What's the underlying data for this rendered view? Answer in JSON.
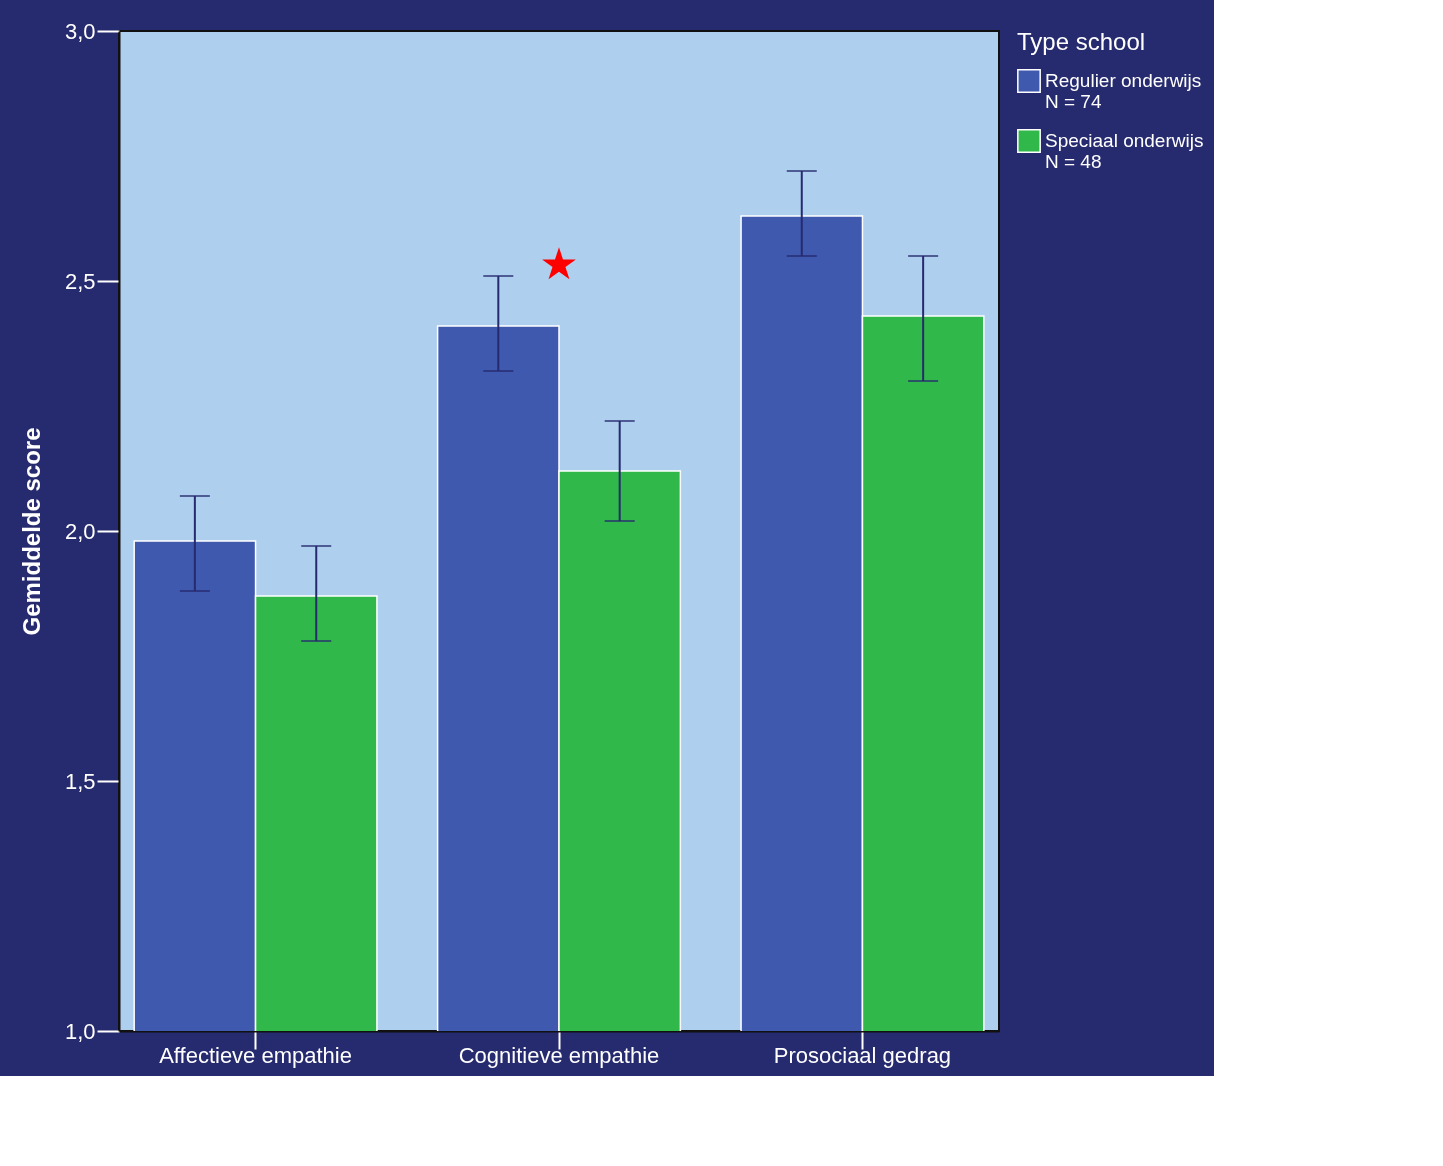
{
  "chart_data": {
    "type": "bar",
    "ylabel": "Gemiddelde score",
    "legend_title": "Type school",
    "legend": "top right",
    "grid": false,
    "categories": [
      "Affectieve empathie",
      "Cognitieve empathie",
      "Prosociaal gedrag"
    ],
    "ylim": [
      1.0,
      3.0
    ],
    "yticks": [
      {
        "value": 1.0,
        "label": "1,0"
      },
      {
        "value": 1.5,
        "label": "1,5"
      },
      {
        "value": 2.0,
        "label": "2,0"
      },
      {
        "value": 2.5,
        "label": "2,5"
      },
      {
        "value": 3.0,
        "label": "3,0"
      }
    ],
    "series": [
      {
        "name": "Regulier onderwijs\nN = 74",
        "color": "#3f59ae",
        "values": [
          1.98,
          2.41,
          2.63
        ],
        "errors": [
          [
            1.88,
            2.07
          ],
          [
            2.32,
            2.51
          ],
          [
            2.55,
            2.72
          ]
        ]
      },
      {
        "name": "Speciaal onderwijs\nN = 48",
        "color": "#31b84a",
        "values": [
          1.87,
          2.12,
          2.43
        ],
        "errors": [
          [
            1.78,
            1.97
          ],
          [
            2.02,
            2.22
          ],
          [
            2.3,
            2.55
          ]
        ]
      }
    ],
    "annotations": [
      "★"
    ]
  }
}
